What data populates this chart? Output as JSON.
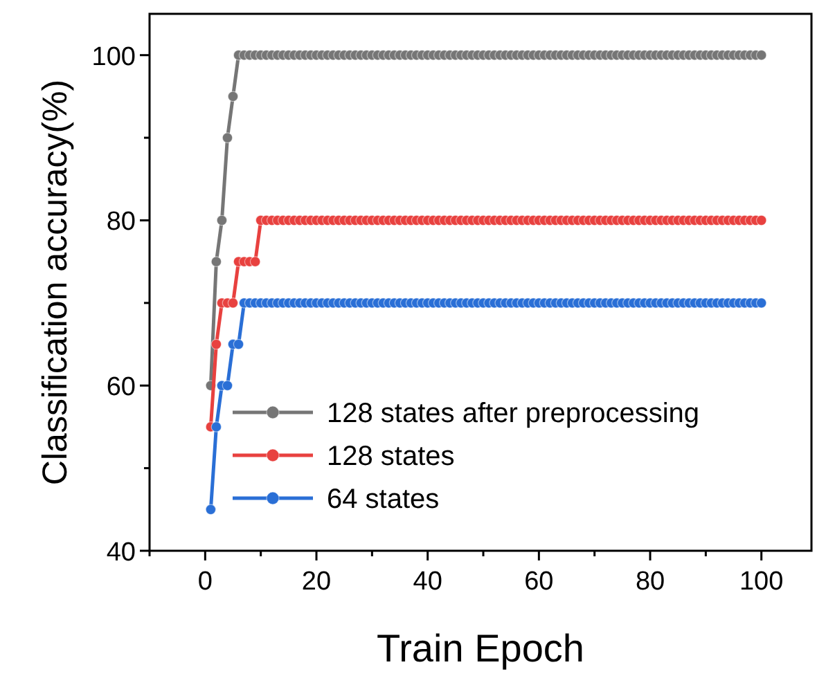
{
  "chart_data": {
    "type": "line",
    "xlabel": "Train Epoch",
    "ylabel": "Classification accuracy(%)",
    "x": [
      1,
      2,
      3,
      4,
      5,
      6,
      7,
      8,
      9,
      10,
      11,
      12,
      13,
      14,
      15,
      16,
      17,
      18,
      19,
      20,
      21,
      22,
      23,
      24,
      25,
      26,
      27,
      28,
      29,
      30,
      31,
      32,
      33,
      34,
      35,
      36,
      37,
      38,
      39,
      40,
      41,
      42,
      43,
      44,
      45,
      46,
      47,
      48,
      49,
      50,
      51,
      52,
      53,
      54,
      55,
      56,
      57,
      58,
      59,
      60,
      61,
      62,
      63,
      64,
      65,
      66,
      67,
      68,
      69,
      70,
      71,
      72,
      73,
      74,
      75,
      76,
      77,
      78,
      79,
      80,
      81,
      82,
      83,
      84,
      85,
      86,
      87,
      88,
      89,
      90,
      91,
      92,
      93,
      94,
      95,
      96,
      97,
      98,
      99,
      100
    ],
    "series": [
      {
        "name": "128 states after preprocessing",
        "color": "#767676",
        "values": [
          60,
          75,
          80,
          90,
          95,
          100,
          100,
          100,
          100,
          100,
          100,
          100,
          100,
          100,
          100,
          100,
          100,
          100,
          100,
          100,
          100,
          100,
          100,
          100,
          100,
          100,
          100,
          100,
          100,
          100,
          100,
          100,
          100,
          100,
          100,
          100,
          100,
          100,
          100,
          100,
          100,
          100,
          100,
          100,
          100,
          100,
          100,
          100,
          100,
          100,
          100,
          100,
          100,
          100,
          100,
          100,
          100,
          100,
          100,
          100,
          100,
          100,
          100,
          100,
          100,
          100,
          100,
          100,
          100,
          100,
          100,
          100,
          100,
          100,
          100,
          100,
          100,
          100,
          100,
          100,
          100,
          100,
          100,
          100,
          100,
          100,
          100,
          100,
          100,
          100,
          100,
          100,
          100,
          100,
          100,
          100,
          100,
          100,
          100,
          100
        ]
      },
      {
        "name": "128 states",
        "color": "#e8413f",
        "values": [
          55,
          65,
          70,
          70,
          70,
          75,
          75,
          75,
          75,
          80,
          80,
          80,
          80,
          80,
          80,
          80,
          80,
          80,
          80,
          80,
          80,
          80,
          80,
          80,
          80,
          80,
          80,
          80,
          80,
          80,
          80,
          80,
          80,
          80,
          80,
          80,
          80,
          80,
          80,
          80,
          80,
          80,
          80,
          80,
          80,
          80,
          80,
          80,
          80,
          80,
          80,
          80,
          80,
          80,
          80,
          80,
          80,
          80,
          80,
          80,
          80,
          80,
          80,
          80,
          80,
          80,
          80,
          80,
          80,
          80,
          80,
          80,
          80,
          80,
          80,
          80,
          80,
          80,
          80,
          80,
          80,
          80,
          80,
          80,
          80,
          80,
          80,
          80,
          80,
          80,
          80,
          80,
          80,
          80,
          80,
          80,
          80,
          80,
          80,
          80
        ]
      },
      {
        "name": "64 states",
        "color": "#2a6fd6",
        "values": [
          45,
          55,
          60,
          60,
          65,
          65,
          70,
          70,
          70,
          70,
          70,
          70,
          70,
          70,
          70,
          70,
          70,
          70,
          70,
          70,
          70,
          70,
          70,
          70,
          70,
          70,
          70,
          70,
          70,
          70,
          70,
          70,
          70,
          70,
          70,
          70,
          70,
          70,
          70,
          70,
          70,
          70,
          70,
          70,
          70,
          70,
          70,
          70,
          70,
          70,
          70,
          70,
          70,
          70,
          70,
          70,
          70,
          70,
          70,
          70,
          70,
          70,
          70,
          70,
          70,
          70,
          70,
          70,
          70,
          70,
          70,
          70,
          70,
          70,
          70,
          70,
          70,
          70,
          70,
          70,
          70,
          70,
          70,
          70,
          70,
          70,
          70,
          70,
          70,
          70,
          70,
          70,
          70,
          70,
          70,
          70,
          70,
          70,
          70,
          70
        ]
      }
    ],
    "xlim": [
      -10,
      109
    ],
    "xticks": [
      {
        "value": -10,
        "label": null
      },
      0,
      {
        "value": 10,
        "label": null
      },
      20,
      {
        "value": 30,
        "label": null
      },
      40,
      {
        "value": 50,
        "label": null
      },
      60,
      {
        "value": 70,
        "label": null
      },
      80,
      {
        "value": 90,
        "label": null
      },
      100
    ],
    "ylim": [
      40,
      105
    ],
    "yticks": [
      40,
      {
        "value": 50,
        "label": null
      },
      60,
      {
        "value": 70,
        "label": null
      },
      80,
      {
        "value": 90,
        "label": null
      },
      100
    ],
    "marker": "circle",
    "line_style": "solid",
    "grid": false,
    "legend": "bottom"
  }
}
